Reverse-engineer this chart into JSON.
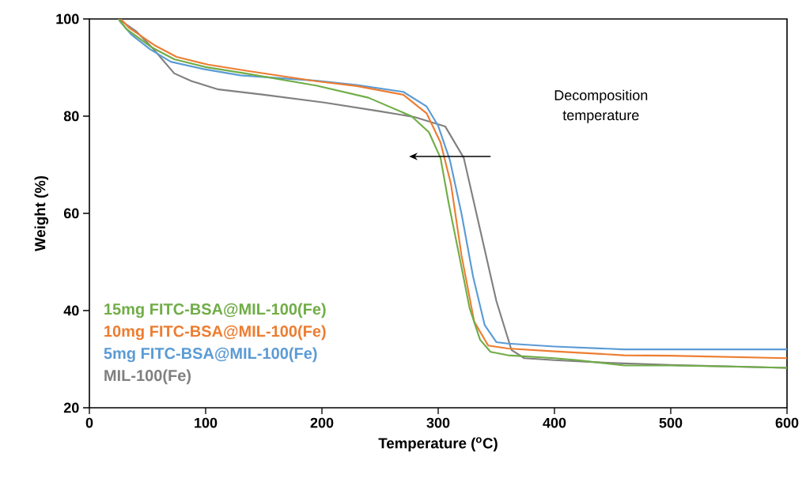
{
  "chart_data": {
    "type": "line",
    "xlabel": "Temperature ($^{o}$C)",
    "ylabel": "Weight (%)",
    "xlim": [
      0,
      600
    ],
    "xticks": [
      0,
      100,
      200,
      300,
      400,
      500,
      600
    ],
    "ylim": [
      20,
      100
    ],
    "yticks": [
      20,
      40,
      60,
      80,
      100
    ],
    "grid": false,
    "legend": "bottom left",
    "marker": "none",
    "line_style": "solid",
    "annotations": [
      "Decomposition temperature"
    ],
    "series": [
      {
        "name": "15mg FITC-BSA@MIL-100(Fe)",
        "color": "#70ad47",
        "x": [
          25,
          32,
          54,
          73,
          100,
          134,
          195,
          240,
          277,
          292,
          302,
          309,
          318,
          327,
          336,
          345,
          360,
          400,
          420,
          460,
          500,
          550,
          600
        ],
        "values": [
          100,
          97.9,
          94.1,
          91.7,
          90.1,
          88.8,
          86.3,
          83.8,
          80,
          76.7,
          71.4,
          62.1,
          51.4,
          40.5,
          34,
          31.5,
          30.8,
          30.2,
          29.8,
          28.7,
          28.7,
          28.5,
          28.2
        ]
      },
      {
        "name": "10mg FITC-BSA@MIL-100(Fe)",
        "color": "#ed7d31",
        "x": [
          27,
          34,
          56,
          75,
          102,
          136,
          195,
          230,
          270,
          290,
          302,
          311,
          320,
          331,
          343,
          360,
          400,
          460,
          500,
          600
        ],
        "values": [
          100,
          98.2,
          94.6,
          92.2,
          90.6,
          89.3,
          87.2,
          86.2,
          84.4,
          80.6,
          74.6,
          66,
          51.4,
          37.7,
          32.8,
          32.2,
          31.6,
          30.8,
          30.7,
          30.2
        ]
      },
      {
        "name": "5mg FITC-BSA@MIL-100(Fe)",
        "color": "#5b9bd5",
        "x": [
          26,
          36,
          52,
          70,
          98,
          130,
          195,
          230,
          270,
          290,
          300,
          310,
          320,
          330,
          340,
          350,
          360,
          400,
          460,
          500,
          600
        ],
        "values": [
          99.6,
          96.8,
          93.8,
          91.2,
          89.7,
          88.4,
          87.3,
          86.4,
          85,
          82,
          78,
          71,
          60,
          47,
          37,
          33.5,
          33.2,
          32.6,
          32,
          32,
          32
        ]
      },
      {
        "name": "MIL-100(Fe)",
        "color": "#808080",
        "x": [
          25,
          40,
          54,
          73,
          88,
          111,
          150,
          202,
          250,
          280,
          306,
          322,
          336,
          350,
          363,
          374,
          400,
          450,
          500,
          600
        ],
        "values": [
          100,
          97.5,
          94.1,
          88.8,
          87.2,
          85.5,
          84.4,
          82.8,
          81,
          79.8,
          77.9,
          71.4,
          56.7,
          42,
          31.9,
          30.2,
          29.8,
          29.2,
          28.8,
          28.2
        ]
      }
    ]
  }
}
